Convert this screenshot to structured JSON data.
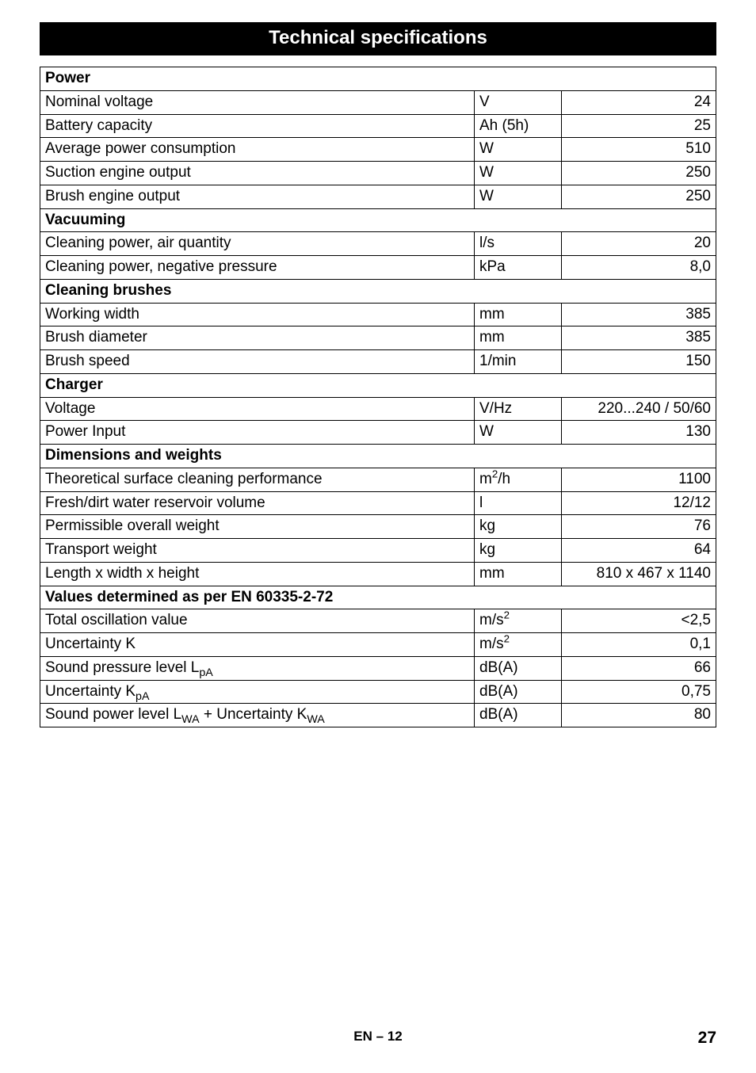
{
  "title": "Technical specifications",
  "footer": {
    "lang": "EN",
    "dash": "–",
    "page_section": "12",
    "page_number": "27"
  },
  "sections": [
    {
      "header": "Power",
      "rows": [
        {
          "label": "Nominal voltage",
          "unit": "V",
          "value": "24"
        },
        {
          "label": "Battery capacity",
          "unit": "Ah (5h)",
          "value": "25"
        },
        {
          "label": "Average power consumption",
          "unit": "W",
          "value": "510"
        },
        {
          "label": "Suction engine output",
          "unit": "W",
          "value": "250"
        },
        {
          "label": "Brush engine output",
          "unit": "W",
          "value": "250"
        }
      ]
    },
    {
      "header": "Vacuuming",
      "rows": [
        {
          "label": "Cleaning power, air quantity",
          "unit": "l/s",
          "value": "20"
        },
        {
          "label": "Cleaning power, negative pressure",
          "unit": "kPa",
          "value": "8,0"
        }
      ]
    },
    {
      "header": "Cleaning brushes",
      "rows": [
        {
          "label": "Working width",
          "unit": "mm",
          "value": "385"
        },
        {
          "label": "Brush diameter",
          "unit": "mm",
          "value": "385"
        },
        {
          "label": "Brush speed",
          "unit": "1/min",
          "value": "150"
        }
      ]
    },
    {
      "header": "Charger",
      "rows": [
        {
          "label": "Voltage",
          "unit": "V/Hz",
          "value": "220...240 / 50/60"
        },
        {
          "label": "Power Input",
          "unit": "W",
          "value": "130"
        }
      ]
    },
    {
      "header": "Dimensions and weights",
      "rows": [
        {
          "label": "Theoretical surface cleaning performance",
          "unit_html": "m<span class='sup'>2</span>/h",
          "value": "1100"
        },
        {
          "label": "Fresh/dirt water reservoir volume",
          "unit": "l",
          "value": "12/12"
        },
        {
          "label": "Permissible overall weight",
          "unit": "kg",
          "value": "76"
        },
        {
          "label": "Transport weight",
          "unit": "kg",
          "value": "64"
        },
        {
          "label": "Length x width x height",
          "unit": "mm",
          "value": "810 x 467 x 1140"
        }
      ]
    },
    {
      "header": "Values determined as per EN 60335-2-72",
      "rows": [
        {
          "label": "Total oscillation value",
          "unit_html": "m/s<span class='sup'>2</span>",
          "value": "<2,5"
        },
        {
          "label": "Uncertainty K",
          "unit_html": "m/s<span class='sup'>2</span>",
          "value": "0,1"
        },
        {
          "label_html": "Sound pressure level L<span class='sub'>pA</span>",
          "unit": "dB(A)",
          "value": "66"
        },
        {
          "label_html": "Uncertainty K<span class='sub'>pA</span>",
          "unit": "dB(A)",
          "value": "0,75"
        },
        {
          "label_html": "Sound power level L<span class='sub'>WA</span> + Uncertainty K<span class='sub'>WA</span>",
          "unit": "dB(A)",
          "value": "80"
        }
      ]
    }
  ]
}
